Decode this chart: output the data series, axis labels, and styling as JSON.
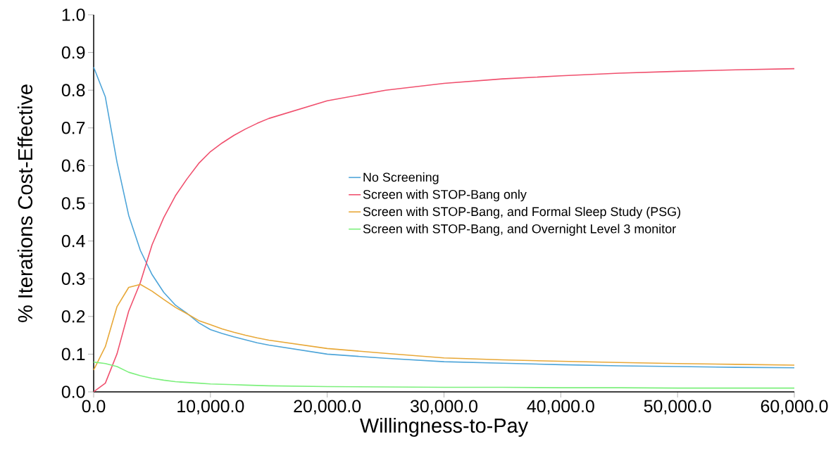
{
  "chart_data": {
    "type": "line",
    "xlabel": "Willingness-to-Pay",
    "ylabel": "% Iterations Cost-Effective",
    "x": [
      0,
      1000,
      2000,
      3000,
      4000,
      5000,
      6000,
      7000,
      8000,
      9000,
      10000,
      11000,
      12000,
      13000,
      14000,
      15000,
      20000,
      25000,
      30000,
      35000,
      40000,
      45000,
      50000,
      55000,
      60000
    ],
    "series": [
      {
        "name": "No Screening",
        "color": "#4ea5d9",
        "values": [
          0.861,
          0.782,
          0.609,
          0.468,
          0.375,
          0.311,
          0.264,
          0.23,
          0.208,
          0.183,
          0.165,
          0.155,
          0.146,
          0.138,
          0.13,
          0.124,
          0.1,
          0.089,
          0.08,
          0.076,
          0.072,
          0.069,
          0.067,
          0.065,
          0.064
        ]
      },
      {
        "name": "Screen with STOP-Bang only",
        "color": "#f0506e",
        "values": [
          0,
          0.023,
          0.101,
          0.214,
          0.29,
          0.39,
          0.462,
          0.52,
          0.565,
          0.606,
          0.637,
          0.66,
          0.68,
          0.697,
          0.712,
          0.725,
          0.772,
          0.8,
          0.818,
          0.83,
          0.838,
          0.845,
          0.85,
          0.854,
          0.857
        ]
      },
      {
        "name": "Screen with STOP-Bang, and Formal Sleep Study (PSG)",
        "color": "#e8a838",
        "values": [
          0.058,
          0.12,
          0.226,
          0.277,
          0.285,
          0.267,
          0.245,
          0.224,
          0.207,
          0.189,
          0.178,
          0.167,
          0.158,
          0.15,
          0.143,
          0.137,
          0.115,
          0.102,
          0.09,
          0.085,
          0.081,
          0.078,
          0.075,
          0.073,
          0.071
        ]
      },
      {
        "name": "Screen with STOP-Bang, and Overnight Level 3 monitor",
        "color": "#7cf07c",
        "values": [
          0.079,
          0.075,
          0.067,
          0.052,
          0.043,
          0.036,
          0.031,
          0.027,
          0.025,
          0.023,
          0.021,
          0.02,
          0.019,
          0.018,
          0.017,
          0.016,
          0.014,
          0.013,
          0.012,
          0.012,
          0.011,
          0.011,
          0.01,
          0.01,
          0.01
        ]
      }
    ],
    "xlim": [
      0,
      60000
    ],
    "ylim": [
      0,
      1
    ],
    "xticks": [
      {
        "value": 0,
        "label": "0.0"
      },
      {
        "value": 10000,
        "label": "10,000.0"
      },
      {
        "value": 20000,
        "label": "20,000.0"
      },
      {
        "value": 30000,
        "label": "30,000.0"
      },
      {
        "value": 40000,
        "label": "40,000.0"
      },
      {
        "value": 50000,
        "label": "50,000.0"
      },
      {
        "value": 60000,
        "label": "60,000.0"
      }
    ],
    "yticks": [
      {
        "value": 0,
        "label": "0.0"
      },
      {
        "value": 0.1,
        "label": "0.1"
      },
      {
        "value": 0.2,
        "label": "0.2"
      },
      {
        "value": 0.3,
        "label": "0.3"
      },
      {
        "value": 0.4,
        "label": "0.4"
      },
      {
        "value": 0.5,
        "label": "0.5"
      },
      {
        "value": 0.6,
        "label": "0.6"
      },
      {
        "value": 0.7,
        "label": "0.7"
      },
      {
        "value": 0.8,
        "label": "0.8"
      },
      {
        "value": 0.9,
        "label": "0.9"
      },
      {
        "value": 1.0,
        "label": "1.0"
      }
    ],
    "legend": "right",
    "grid": false,
    "marker": "none",
    "line_style": "solid"
  }
}
